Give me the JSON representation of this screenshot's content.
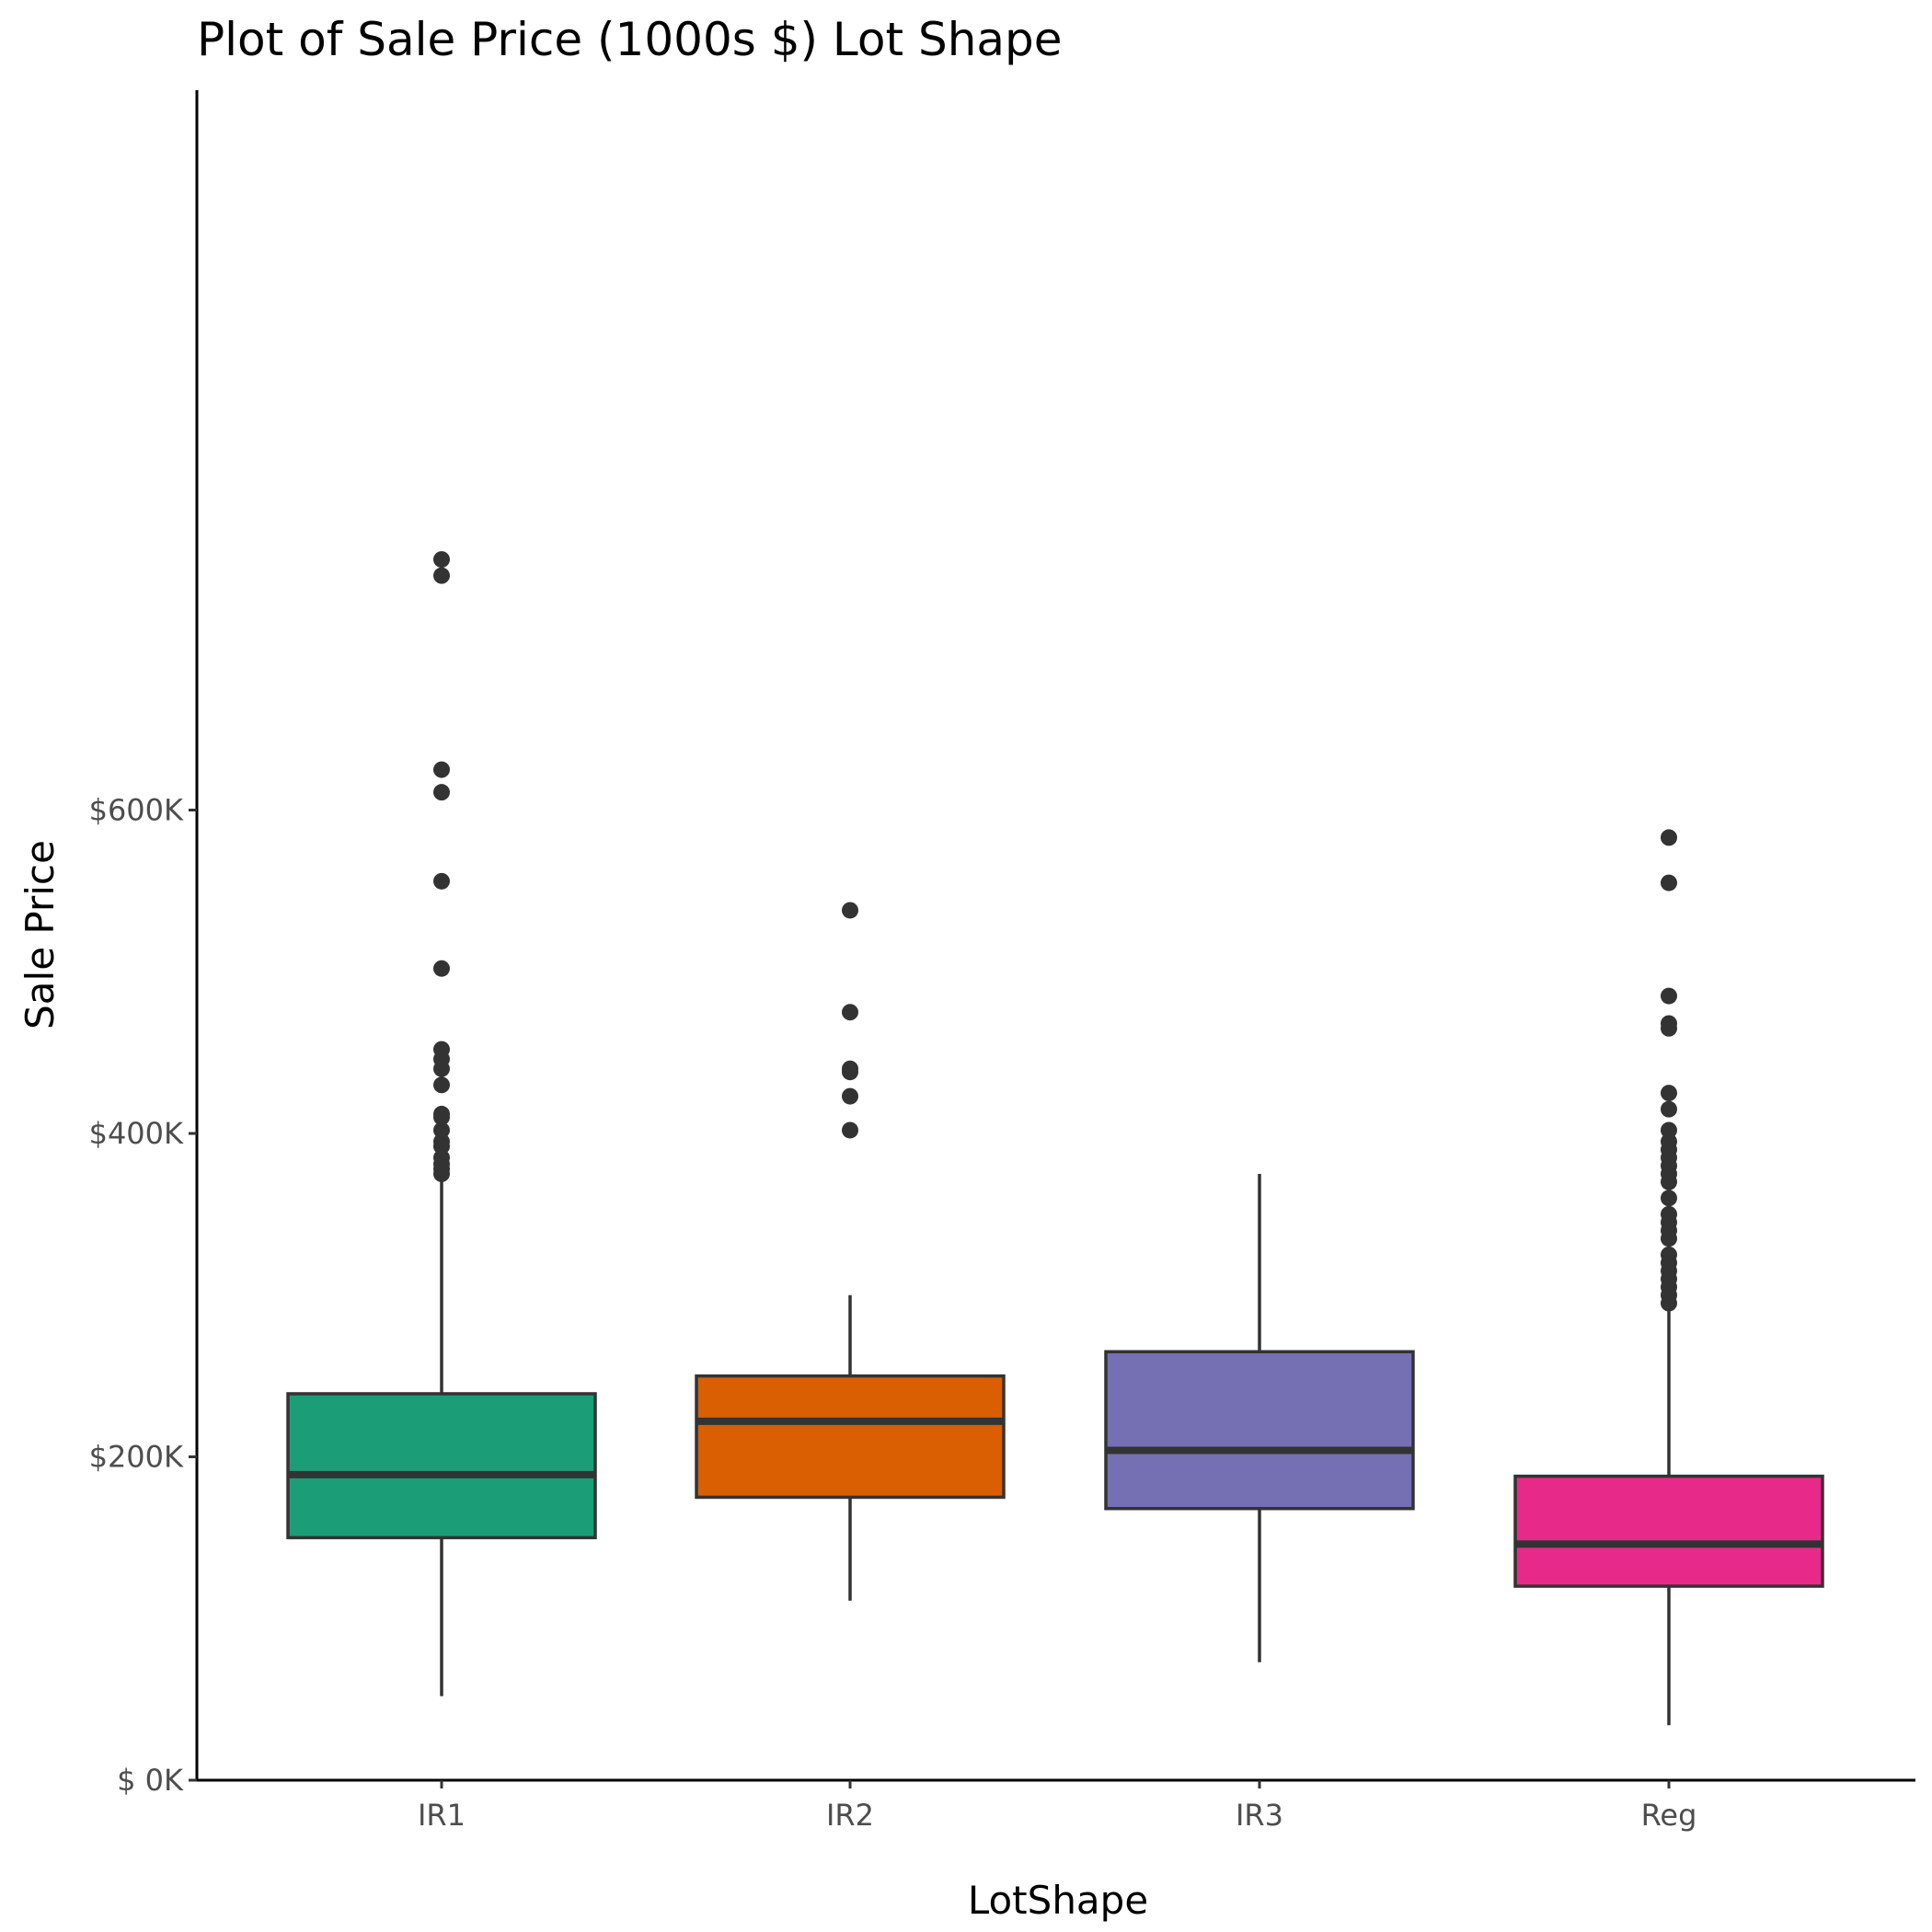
{
  "chart_data": {
    "type": "box",
    "title": "Plot of Sale Price (1000s $) Lot Shape",
    "xlabel": "LotShape",
    "ylabel": "Sale Price",
    "y_unit": "1000s $",
    "ylim": [
      0,
      755
    ],
    "yticks": [
      {
        "value": 0,
        "label": "$  0K"
      },
      {
        "value": 200,
        "label": "$200K"
      },
      {
        "value": 400,
        "label": "$400K"
      },
      {
        "value": 600,
        "label": "$600K"
      }
    ],
    "grid": false,
    "legend": "none",
    "categories": [
      "IR1",
      "IR2",
      "IR3",
      "Reg"
    ],
    "series": [
      {
        "category": "IR1",
        "color": "#1b9e77",
        "whisker_low": 52,
        "q1": 150,
        "median": 189,
        "q3": 239,
        "whisker_high": 374,
        "outliers": [
          375,
          378,
          381,
          385,
          392,
          395,
          402,
          410,
          412,
          430,
          440,
          446,
          452,
          502,
          556,
          611,
          625,
          745,
          755
        ]
      },
      {
        "category": "IR2",
        "color": "#d95f02",
        "whisker_low": 111,
        "q1": 175,
        "median": 222,
        "q3": 250,
        "whisker_high": 300,
        "outliers": [
          402,
          423,
          438,
          440,
          475,
          538
        ]
      },
      {
        "category": "IR3",
        "color": "#7570b3",
        "whisker_low": 73,
        "q1": 168,
        "median": 204,
        "q3": 265,
        "whisker_high": 375,
        "outliers": []
      },
      {
        "category": "Reg",
        "color": "#e7298a",
        "whisker_low": 34,
        "q1": 120,
        "median": 146,
        "q3": 188,
        "whisker_high": 290,
        "outliers": [
          295,
          300,
          305,
          310,
          315,
          320,
          325,
          335,
          340,
          345,
          350,
          360,
          370,
          375,
          380,
          385,
          390,
          395,
          402,
          415,
          425,
          465,
          468,
          485,
          555,
          583
        ]
      }
    ]
  }
}
